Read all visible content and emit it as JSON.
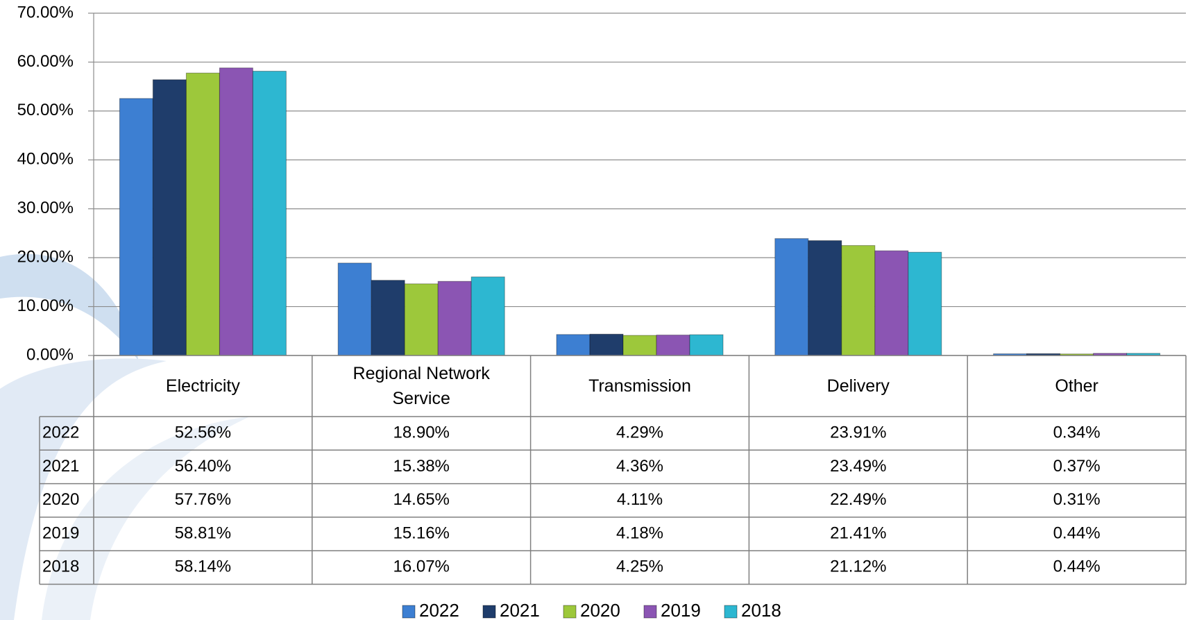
{
  "chart_data": {
    "type": "bar",
    "categories": [
      "Electricity",
      "Regional Network Service",
      "Transmission",
      "Delivery",
      "Other"
    ],
    "series": [
      {
        "name": "2022",
        "color": "#3d7fd2",
        "values": [
          52.56,
          18.9,
          4.29,
          23.91,
          0.34
        ],
        "value_labels": [
          "52.56%",
          "18.90%",
          "4.29%",
          "23.91%",
          "0.34%"
        ]
      },
      {
        "name": "2021",
        "color": "#1f3d6b",
        "values": [
          56.4,
          15.38,
          4.36,
          23.49,
          0.37
        ],
        "value_labels": [
          "56.40%",
          "15.38%",
          "4.36%",
          "23.49%",
          "0.37%"
        ]
      },
      {
        "name": "2020",
        "color": "#9dc83b",
        "values": [
          57.76,
          14.65,
          4.11,
          22.49,
          0.31
        ],
        "value_labels": [
          "57.76%",
          "14.65%",
          "4.11%",
          "22.49%",
          "0.31%"
        ]
      },
      {
        "name": "2019",
        "color": "#8b55b3",
        "values": [
          58.81,
          15.16,
          4.18,
          21.41,
          0.44
        ],
        "value_labels": [
          "58.81%",
          "15.16%",
          "4.18%",
          "21.41%",
          "0.44%"
        ]
      },
      {
        "name": "2018",
        "color": "#2db7d1",
        "values": [
          58.14,
          16.07,
          4.25,
          21.12,
          0.44
        ],
        "value_labels": [
          "58.14%",
          "16.07%",
          "4.25%",
          "21.12%",
          "0.44%"
        ]
      }
    ],
    "ylim": [
      0,
      70
    ],
    "yticks": [
      {
        "value": 0,
        "label": "0.00%"
      },
      {
        "value": 10,
        "label": "10.00%"
      },
      {
        "value": 20,
        "label": "20.00%"
      },
      {
        "value": 30,
        "label": "30.00%"
      },
      {
        "value": 40,
        "label": "40.00%"
      },
      {
        "value": 50,
        "label": "50.00%"
      },
      {
        "value": 60,
        "label": "60.00%"
      },
      {
        "value": 70,
        "label": "70.00%"
      }
    ],
    "grid": true,
    "legend": "bottom"
  }
}
